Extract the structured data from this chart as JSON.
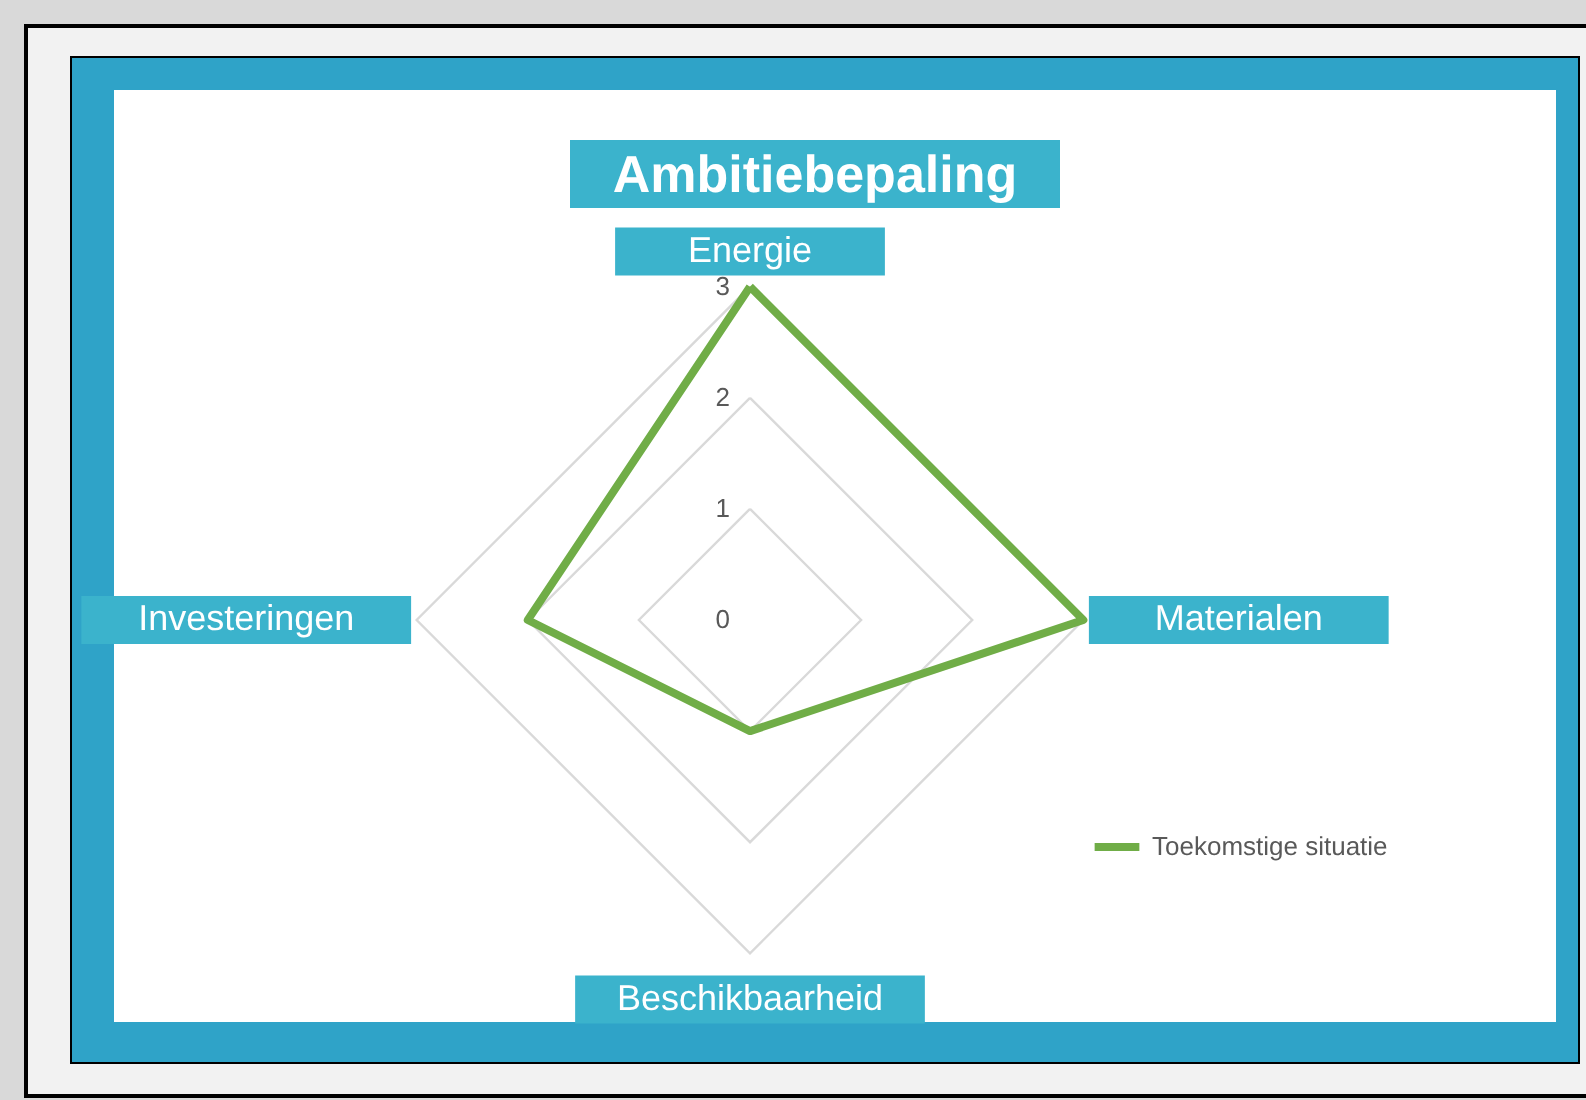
{
  "chart_data": {
    "type": "radar",
    "title": "Ambitiebepaling",
    "categories": [
      "Energie",
      "Materialen",
      "Beschikbaarheid",
      "Investeringen"
    ],
    "series": [
      {
        "name": "Toekomstige situatie",
        "color": "#70ad47",
        "values": [
          3,
          3,
          1,
          2
        ]
      }
    ],
    "ylim": [
      0,
      3
    ],
    "yticks": [
      0,
      1,
      2,
      3
    ],
    "grid": true,
    "legend": "bottom right"
  }
}
